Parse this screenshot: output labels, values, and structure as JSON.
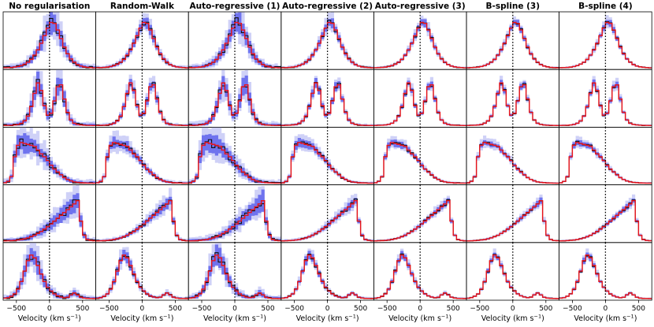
{
  "chart_data": {
    "type": "histogram-grid",
    "title": "",
    "rows": 5,
    "columns": [
      "No regularisation",
      "Random-Walk",
      "Auto-regressive (1)",
      "Auto-regressive (2)",
      "Auto-regressive (3)",
      "B-spline (3)",
      "B-spline (4)"
    ],
    "xlabel": "Velocity (km s$^{-1}$)",
    "xlabel_display": "Velocity (km s",
    "xlabel_sup": "−1",
    "xlabel_close": ")",
    "xlim": [
      -700,
      700
    ],
    "xticks": [
      -500,
      0,
      500
    ],
    "xtick_labels": [
      "−500",
      "0",
      "500"
    ],
    "reference_line_x": 0,
    "bin_width": 50,
    "bin_centers": [
      -675,
      -625,
      -575,
      -525,
      -475,
      -425,
      -375,
      -325,
      -275,
      -225,
      -175,
      -125,
      -75,
      -25,
      25,
      75,
      125,
      175,
      225,
      275,
      325,
      375,
      425,
      475,
      525,
      575,
      625,
      675
    ],
    "legend": {
      "true_profile": "red histogram",
      "estimate": "black histogram",
      "inner_band": "medium blue credible band",
      "outer_band": "light blue credible band"
    },
    "rows_data": [
      {
        "profile": "single-peak",
        "true": [
          0.004,
          0.006,
          0.01,
          0.018,
          0.03,
          0.05,
          0.08,
          0.12,
          0.18,
          0.27,
          0.38,
          0.52,
          0.68,
          0.84,
          0.96,
          0.94,
          0.8,
          0.62,
          0.44,
          0.3,
          0.19,
          0.12,
          0.07,
          0.04,
          0.022,
          0.012,
          0.006,
          0.003
        ]
      },
      {
        "profile": "double-peak",
        "true": [
          0.003,
          0.005,
          0.008,
          0.014,
          0.024,
          0.05,
          0.1,
          0.2,
          0.4,
          0.68,
          0.9,
          0.74,
          0.42,
          0.22,
          0.26,
          0.52,
          0.82,
          0.86,
          0.56,
          0.28,
          0.12,
          0.05,
          0.025,
          0.014,
          0.008,
          0.005,
          0.003,
          0.002
        ]
      },
      {
        "profile": "flat-top-blue",
        "true": [
          0.01,
          0.04,
          0.14,
          0.56,
          0.8,
          0.86,
          0.84,
          0.82,
          0.8,
          0.78,
          0.7,
          0.62,
          0.56,
          0.48,
          0.38,
          0.3,
          0.24,
          0.18,
          0.12,
          0.08,
          0.05,
          0.03,
          0.02,
          0.012,
          0.008,
          0.005,
          0.003,
          0.002
        ]
      },
      {
        "profile": "red-rising",
        "true": [
          0.002,
          0.004,
          0.007,
          0.012,
          0.02,
          0.03,
          0.045,
          0.065,
          0.09,
          0.12,
          0.16,
          0.2,
          0.25,
          0.3,
          0.36,
          0.42,
          0.48,
          0.54,
          0.6,
          0.66,
          0.72,
          0.78,
          0.85,
          0.42,
          0.12,
          0.03,
          0.01,
          0.004
        ]
      },
      {
        "profile": "blue-peak",
        "true": [
          0.01,
          0.02,
          0.05,
          0.1,
          0.2,
          0.36,
          0.58,
          0.8,
          0.92,
          0.86,
          0.7,
          0.52,
          0.36,
          0.24,
          0.16,
          0.1,
          0.06,
          0.035,
          0.02,
          0.03,
          0.08,
          0.12,
          0.08,
          0.03,
          0.012,
          0.006,
          0.003,
          0.002
        ]
      }
    ],
    "uncertainty_scale_by_column": [
      1.0,
      0.55,
      1.0,
      0.45,
      0.35,
      0.3,
      0.3
    ]
  }
}
